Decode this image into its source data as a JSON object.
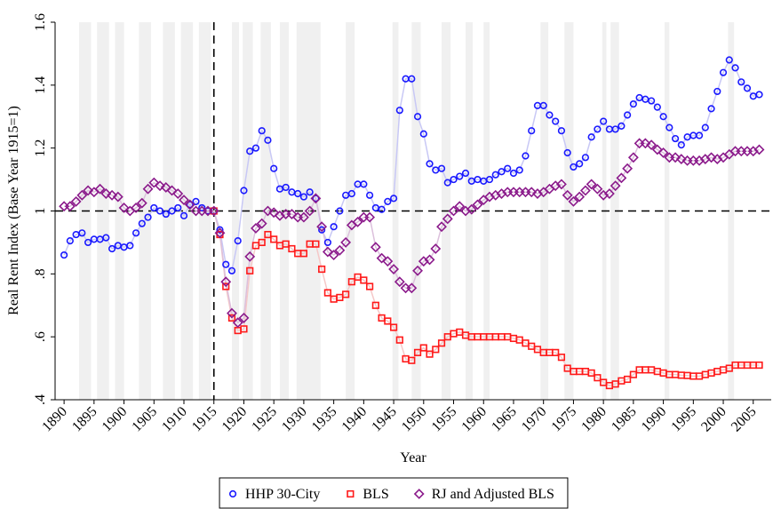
{
  "chart_data": {
    "type": "line",
    "x_label": "Year",
    "y_label": "Real Rent Index (Base Year 1915=1)",
    "x": [
      1890,
      1891,
      1892,
      1893,
      1894,
      1895,
      1896,
      1897,
      1898,
      1899,
      1900,
      1901,
      1902,
      1903,
      1904,
      1905,
      1906,
      1907,
      1908,
      1909,
      1910,
      1911,
      1912,
      1913,
      1914,
      1915,
      1916,
      1917,
      1918,
      1919,
      1920,
      1921,
      1922,
      1923,
      1924,
      1925,
      1926,
      1927,
      1928,
      1929,
      1930,
      1931,
      1932,
      1933,
      1934,
      1935,
      1936,
      1937,
      1938,
      1939,
      1940,
      1941,
      1942,
      1943,
      1944,
      1945,
      1946,
      1947,
      1948,
      1949,
      1950,
      1951,
      1952,
      1953,
      1954,
      1955,
      1956,
      1957,
      1958,
      1959,
      1960,
      1961,
      1962,
      1963,
      1964,
      1965,
      1966,
      1967,
      1968,
      1969,
      1970,
      1971,
      1972,
      1973,
      1974,
      1975,
      1976,
      1977,
      1978,
      1979,
      1980,
      1981,
      1982,
      1983,
      1984,
      1985,
      1986,
      1987,
      1988,
      1989,
      1990,
      1991,
      1992,
      1993,
      1994,
      1995,
      1996,
      1997,
      1998,
      1999,
      2000,
      2001,
      2002,
      2003,
      2004,
      2005,
      2006
    ],
    "series": [
      {
        "name": "HHP 30-City",
        "color": "#1a1aff",
        "line_color": "#c8c8f5",
        "marker": "circle",
        "values": [
          0.86,
          0.905,
          0.925,
          0.93,
          0.9,
          0.91,
          0.91,
          0.915,
          0.88,
          0.89,
          0.885,
          0.89,
          0.93,
          0.96,
          0.98,
          1.01,
          1.0,
          0.99,
          1.0,
          1.01,
          0.985,
          1.02,
          1.03,
          1.01,
          1.0,
          1.0,
          0.94,
          0.83,
          0.81,
          0.905,
          1.065,
          1.19,
          1.2,
          1.255,
          1.225,
          1.135,
          1.07,
          1.075,
          1.06,
          1.055,
          1.045,
          1.06,
          1.04,
          0.94,
          0.9,
          0.95,
          1.0,
          1.05,
          1.055,
          1.085,
          1.085,
          1.05,
          1.01,
          1.005,
          1.03,
          1.04,
          1.32,
          1.42,
          1.42,
          1.3,
          1.245,
          1.15,
          1.13,
          1.135,
          1.09,
          1.1,
          1.11,
          1.12,
          1.095,
          1.1,
          1.095,
          1.1,
          1.115,
          1.125,
          1.135,
          1.12,
          1.13,
          1.175,
          1.255,
          1.335,
          1.335,
          1.305,
          1.285,
          1.255,
          1.185,
          1.14,
          1.15,
          1.17,
          1.235,
          1.26,
          1.285,
          1.26,
          1.26,
          1.27,
          1.305,
          1.34,
          1.36,
          1.355,
          1.35,
          1.33,
          1.3,
          1.265,
          1.23,
          1.21,
          1.235,
          1.24,
          1.24,
          1.265,
          1.325,
          1.38,
          1.44,
          1.48,
          1.455,
          1.41,
          1.39,
          1.365,
          1.37
        ]
      },
      {
        "name": "BLS",
        "color": "#ff1a1a",
        "line_color": "#f5c8c8",
        "marker": "square",
        "values": [
          null,
          null,
          null,
          null,
          null,
          null,
          null,
          null,
          null,
          null,
          null,
          null,
          null,
          null,
          null,
          null,
          null,
          null,
          null,
          null,
          null,
          null,
          null,
          null,
          null,
          1.0,
          0.925,
          0.76,
          0.66,
          0.62,
          0.625,
          0.81,
          0.89,
          0.9,
          0.925,
          0.91,
          0.89,
          0.895,
          0.88,
          0.865,
          0.865,
          0.895,
          0.895,
          0.815,
          0.74,
          0.72,
          0.725,
          0.735,
          0.775,
          0.79,
          0.78,
          0.76,
          0.7,
          0.66,
          0.65,
          0.63,
          0.59,
          0.53,
          0.525,
          0.55,
          0.565,
          0.545,
          0.56,
          0.58,
          0.6,
          0.61,
          0.615,
          0.605,
          0.6,
          0.6,
          0.6,
          0.6,
          0.6,
          0.6,
          0.6,
          0.595,
          0.59,
          0.58,
          0.57,
          0.56,
          0.55,
          0.55,
          0.55,
          0.535,
          0.5,
          0.49,
          0.49,
          0.49,
          0.485,
          0.47,
          0.455,
          0.445,
          0.45,
          0.46,
          0.465,
          0.48,
          0.495,
          0.495,
          0.495,
          0.49,
          0.485,
          0.48,
          0.48,
          0.478,
          0.477,
          0.475,
          0.475,
          0.48,
          0.485,
          0.49,
          0.495,
          0.5,
          0.51,
          0.51,
          0.51,
          0.51,
          0.51
        ]
      },
      {
        "name": "RJ and Adjusted BLS",
        "color": "#8b1a8b",
        "line_color": "#dcc0dc",
        "marker": "diamond",
        "values": [
          1.015,
          1.015,
          1.03,
          1.05,
          1.065,
          1.06,
          1.07,
          1.055,
          1.05,
          1.045,
          1.01,
          1.0,
          1.01,
          1.025,
          1.07,
          1.09,
          1.08,
          1.075,
          1.065,
          1.055,
          1.035,
          1.02,
          1.0,
          1.0,
          1.0,
          1.0,
          0.93,
          0.775,
          0.675,
          0.645,
          0.66,
          0.855,
          0.945,
          0.96,
          1.0,
          0.995,
          0.985,
          0.99,
          0.99,
          0.98,
          0.98,
          1.0,
          1.04,
          0.95,
          0.87,
          0.86,
          0.875,
          0.9,
          0.955,
          0.965,
          0.98,
          0.98,
          0.885,
          0.85,
          0.84,
          0.815,
          0.775,
          0.755,
          0.755,
          0.81,
          0.84,
          0.845,
          0.88,
          0.95,
          0.975,
          1.0,
          1.015,
          1.0,
          1.005,
          1.02,
          1.035,
          1.045,
          1.05,
          1.055,
          1.06,
          1.06,
          1.06,
          1.06,
          1.06,
          1.055,
          1.06,
          1.07,
          1.08,
          1.085,
          1.05,
          1.03,
          1.045,
          1.065,
          1.085,
          1.07,
          1.05,
          1.055,
          1.08,
          1.105,
          1.135,
          1.17,
          1.215,
          1.215,
          1.21,
          1.195,
          1.185,
          1.17,
          1.17,
          1.165,
          1.16,
          1.16,
          1.16,
          1.165,
          1.17,
          1.165,
          1.17,
          1.18,
          1.19,
          1.19,
          1.19,
          1.19,
          1.195
        ]
      }
    ],
    "xlim": [
      1888.5,
      2008
    ],
    "xticks": [
      1890,
      1895,
      1900,
      1905,
      1910,
      1915,
      1920,
      1925,
      1930,
      1935,
      1940,
      1945,
      1950,
      1955,
      1960,
      1965,
      1970,
      1975,
      1980,
      1985,
      1990,
      1995,
      2000,
      2005
    ],
    "ylim": [
      0.4,
      1.6
    ],
    "yticks": [
      {
        "value": 0.4,
        "label": ".4"
      },
      {
        "value": 0.6,
        "label": ".6"
      },
      {
        "value": 0.8,
        "label": ".8"
      },
      1,
      1.2,
      1.4,
      1.6
    ],
    "hline": 1,
    "vline": 1915,
    "shaded_periods": [
      [
        1892.5,
        1894.5
      ],
      [
        1895.5,
        1897.5
      ],
      [
        1898.5,
        1900
      ],
      [
        1902.5,
        1904.5
      ],
      [
        1906.5,
        1908.5
      ],
      [
        1909.5,
        1911.5
      ],
      [
        1912.5,
        1914.5
      ],
      [
        1918,
        1919.2
      ],
      [
        1919.8,
        1921.5
      ],
      [
        1922.8,
        1924.5
      ],
      [
        1926,
        1927.5
      ],
      [
        1928.8,
        1932.8
      ],
      [
        1937,
        1938.5
      ],
      [
        1944.8,
        1945.8
      ],
      [
        1948,
        1949.5
      ],
      [
        1953,
        1954.5
      ],
      [
        1957,
        1958.2
      ],
      [
        1960,
        1961
      ],
      [
        1969.5,
        1970.8
      ],
      [
        1973.5,
        1975
      ],
      [
        1979.8,
        1980.5
      ],
      [
        1981.2,
        1982.6
      ],
      [
        1990.2,
        1991
      ],
      [
        2000.8,
        2001.8
      ]
    ],
    "shade_color": "#f0f0f0",
    "legend": "bottom"
  }
}
